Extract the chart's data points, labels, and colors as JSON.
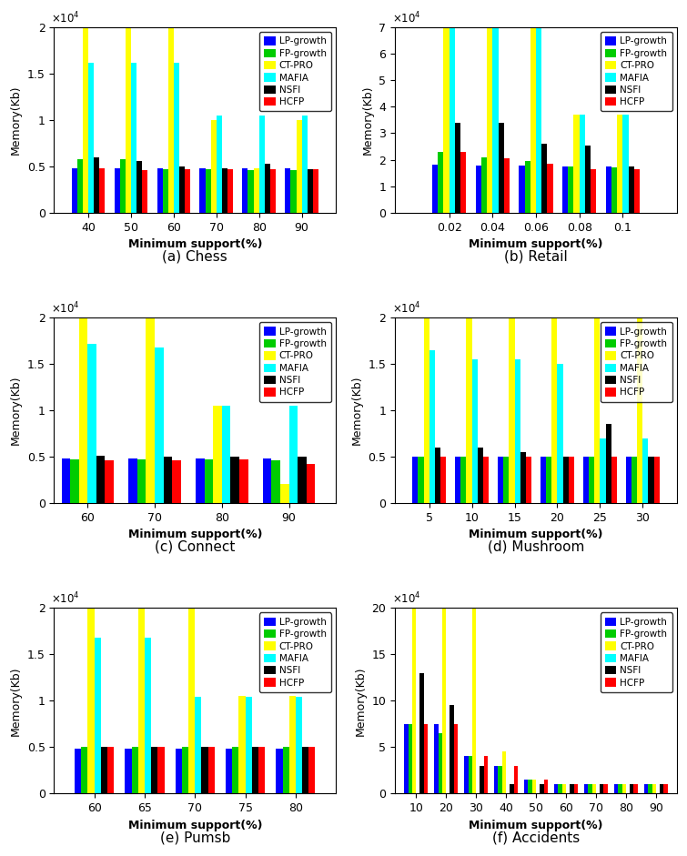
{
  "colors": [
    "#0000FF",
    "#00CC00",
    "#FFFF00",
    "#00FFFF",
    "#000000",
    "#FF0000"
  ],
  "legend_labels": [
    "LP-growth",
    "FP-growth",
    "CT-PRO",
    "MAFIA",
    "NSFI",
    "HCFP"
  ],
  "subplots": [
    {
      "title": "(a) Chess",
      "xlabel": "Minimum support(%)",
      "ylabel": "Memory(Kb)",
      "xticks": [
        40,
        50,
        60,
        70,
        80,
        90
      ],
      "xlim": [
        32,
        98
      ],
      "ylim": [
        0,
        20000
      ],
      "yticks": [
        0,
        5000,
        10000,
        15000,
        20000
      ],
      "yticklabels": [
        "0",
        "0.5",
        "1",
        "1.5",
        "2"
      ],
      "sci_label": "x10⁴",
      "data": {
        "LP": [
          4800,
          4800,
          4800,
          4800,
          4800,
          4800
        ],
        "FP": [
          5800,
          5800,
          4700,
          4700,
          4600,
          4600
        ],
        "CT": [
          20000,
          20000,
          20000,
          10000,
          4800,
          10000
        ],
        "MAFIA": [
          16200,
          16200,
          16200,
          10500,
          10500,
          10500
        ],
        "NSFI": [
          6000,
          5600,
          5000,
          4800,
          5300,
          4700
        ],
        "HCFP": [
          4800,
          4600,
          4700,
          4700,
          4700,
          4700
        ]
      }
    },
    {
      "title": "(b) Retail",
      "xlabel": "Minimum support(%)",
      "ylabel": "Memory(Kb)",
      "xticks": [
        0.02,
        0.04,
        0.06,
        0.08,
        0.1
      ],
      "xlim": [
        -0.005,
        0.125
      ],
      "ylim": [
        0,
        70000
      ],
      "yticks": [
        0,
        10000,
        20000,
        30000,
        40000,
        50000,
        60000,
        70000
      ],
      "yticklabels": [
        "0",
        "1",
        "2",
        "3",
        "4",
        "5",
        "6",
        "7"
      ],
      "sci_label": "x10⁴",
      "data": {
        "LP": [
          18000,
          17800,
          17800,
          17600,
          17400
        ],
        "FP": [
          23000,
          21000,
          19500,
          17500,
          17000
        ],
        "CT": [
          70000,
          70000,
          70000,
          37000,
          37000
        ],
        "MAFIA": [
          70000,
          70000,
          70000,
          37000,
          37000
        ],
        "NSFI": [
          34000,
          34000,
          26000,
          25500,
          17500
        ],
        "HCFP": [
          23000,
          20500,
          18500,
          16500,
          16500
        ]
      }
    },
    {
      "title": "(c) Connect",
      "xlabel": "Minimum support(%)",
      "ylabel": "Memory(Kb)",
      "xticks": [
        60,
        70,
        80,
        90
      ],
      "xlim": [
        55,
        97
      ],
      "ylim": [
        0,
        20000
      ],
      "yticks": [
        0,
        5000,
        10000,
        15000,
        20000
      ],
      "yticklabels": [
        "0",
        "0.5",
        "1",
        "1.5",
        "2"
      ],
      "sci_label": "x10⁴",
      "data": {
        "LP": [
          4800,
          4800,
          4800,
          4800
        ],
        "FP": [
          4700,
          4700,
          4700,
          4600
        ],
        "CT": [
          20000,
          20000,
          10500,
          2100
        ],
        "MAFIA": [
          17200,
          16800,
          10500,
          10500
        ],
        "NSFI": [
          5100,
          5000,
          5000,
          5000
        ],
        "HCFP": [
          4600,
          4600,
          4700,
          4200
        ]
      }
    },
    {
      "title": "(d) Mushroom",
      "xlabel": "Minimum support(%)",
      "ylabel": "Memory(Kb)",
      "xticks": [
        5,
        10,
        15,
        20,
        25,
        30
      ],
      "xlim": [
        1,
        34
      ],
      "ylim": [
        0,
        20000
      ],
      "yticks": [
        0,
        5000,
        10000,
        15000,
        20000
      ],
      "yticklabels": [
        "0",
        "0.5",
        "1",
        "1.5",
        "2"
      ],
      "sci_label": "x10⁴",
      "data": {
        "LP": [
          5000,
          5000,
          5000,
          5000,
          5000,
          5000
        ],
        "FP": [
          5000,
          5000,
          5000,
          5000,
          5000,
          5000
        ],
        "CT": [
          20000,
          20000,
          20000,
          20000,
          20000,
          20000
        ],
        "MAFIA": [
          16500,
          15500,
          15500,
          15000,
          7000,
          7000
        ],
        "NSFI": [
          6000,
          6000,
          5500,
          5000,
          8500,
          5000
        ],
        "HCFP": [
          5000,
          5000,
          5000,
          5000,
          5000,
          5000
        ]
      }
    },
    {
      "title": "(e) Pumsb",
      "xlabel": "Minimum support(%)",
      "ylabel": "Memory(Kb)",
      "xticks": [
        60,
        65,
        70,
        75,
        80
      ],
      "xlim": [
        56,
        84
      ],
      "ylim": [
        0,
        20000
      ],
      "yticks": [
        0,
        5000,
        10000,
        15000,
        20000
      ],
      "yticklabels": [
        "0",
        "0.5",
        "1",
        "1.5",
        "2"
      ],
      "sci_label": "x10⁴",
      "data": {
        "LP": [
          4800,
          4800,
          4800,
          4800,
          4800
        ],
        "FP": [
          5000,
          5000,
          5000,
          5000,
          5000
        ],
        "CT": [
          20000,
          20000,
          20000,
          10500,
          10500
        ],
        "MAFIA": [
          16800,
          16800,
          10400,
          10400,
          10400
        ],
        "NSFI": [
          5000,
          5000,
          5000,
          5000,
          5000
        ],
        "HCFP": [
          5000,
          5000,
          5000,
          5000,
          5000
        ]
      }
    },
    {
      "title": "(f) Accidents",
      "xlabel": "Minimum support(%)",
      "ylabel": "Memory(Kb)",
      "xticks": [
        10,
        20,
        30,
        40,
        50,
        60,
        70,
        80,
        90
      ],
      "xlim": [
        3,
        97
      ],
      "ylim": [
        0,
        200000
      ],
      "yticks": [
        0,
        50000,
        100000,
        150000,
        200000
      ],
      "yticklabels": [
        "0",
        "5",
        "10",
        "15",
        "20"
      ],
      "sci_label": "x10⁴",
      "data": {
        "LP": [
          75000,
          75000,
          40000,
          30000,
          15000,
          10000,
          10000,
          10000,
          10000
        ],
        "FP": [
          75000,
          65000,
          40000,
          30000,
          15000,
          10000,
          10000,
          10000,
          10000
        ],
        "CT": [
          200000,
          200000,
          200000,
          45000,
          15000,
          10000,
          10000,
          10000,
          10000
        ],
        "MAFIA": [
          0,
          0,
          0,
          0,
          0,
          0,
          0,
          0,
          0
        ],
        "NSFI": [
          130000,
          95000,
          30000,
          10000,
          10000,
          10000,
          10000,
          10000,
          10000
        ],
        "HCFP": [
          75000,
          75000,
          40000,
          30000,
          15000,
          10000,
          10000,
          10000,
          10000
        ]
      }
    }
  ]
}
